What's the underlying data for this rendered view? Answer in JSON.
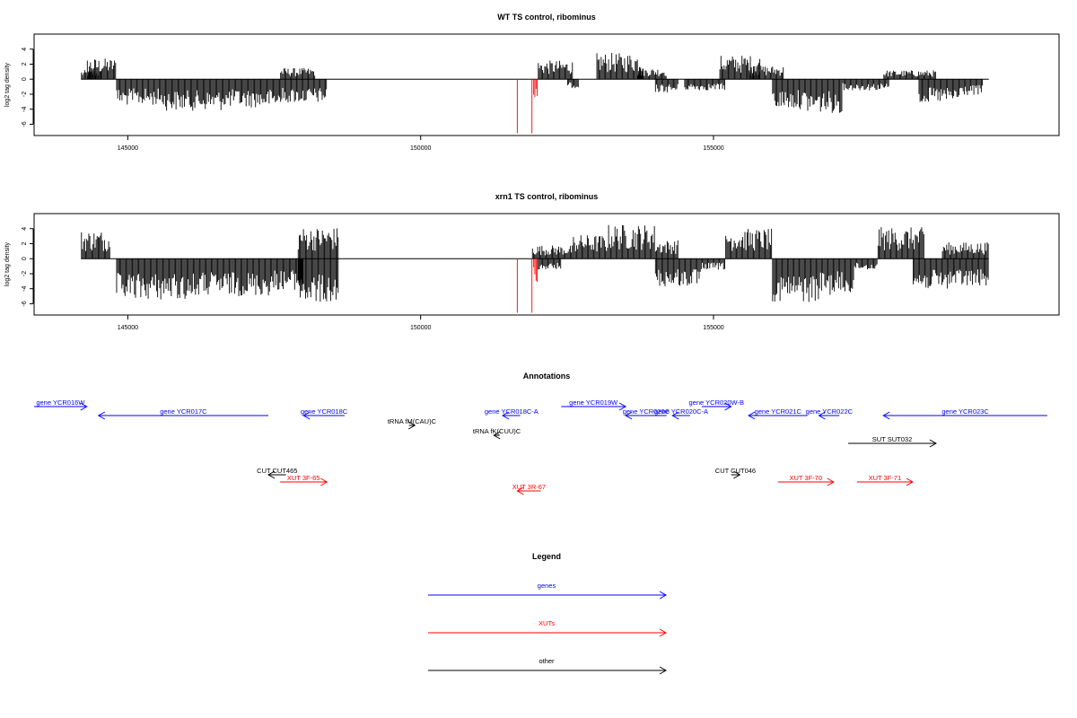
{
  "chart_data": [
    {
      "type": "bar",
      "title": "WT TS control, ribominus",
      "ylabel": "log2 tag density",
      "xlim": [
        143400,
        160900
      ],
      "ylim": [
        -7.5,
        6
      ],
      "x_ticks": [
        145000,
        150000,
        155000
      ],
      "y_ticks": [
        -6,
        -4,
        -2,
        0,
        2,
        4
      ],
      "grid": false,
      "series": [
        {
          "color": "#000000",
          "segments": [
            [
              144200,
              144550,
              0,
              1.2
            ],
            [
              144300,
              144800,
              0,
              2.8
            ],
            [
              144800,
              145600,
              -3.5,
              0
            ],
            [
              145600,
              146600,
              -4.2,
              0
            ],
            [
              146600,
              147600,
              -3.8,
              0
            ],
            [
              147600,
              148200,
              0,
              1.5
            ],
            [
              147600,
              148400,
              -3.2,
              0
            ],
            [
              152000,
              152600,
              0,
              2.5
            ],
            [
              152500,
              152700,
              -1.2,
              0
            ],
            [
              153000,
              153800,
              0,
              3.5
            ],
            [
              153700,
              154200,
              0,
              1.5
            ],
            [
              154000,
              154400,
              -1.8,
              0
            ],
            [
              154500,
              155200,
              -1.5,
              0
            ],
            [
              155100,
              155800,
              0,
              3.2
            ],
            [
              155600,
              156200,
              0,
              1.8
            ],
            [
              156000,
              156600,
              -4.0,
              0
            ],
            [
              156600,
              157200,
              -4.5,
              0
            ],
            [
              157200,
              158000,
              -1.5,
              0
            ],
            [
              157900,
              158800,
              0,
              1.2
            ],
            [
              158500,
              159200,
              -3.2,
              0
            ],
            [
              159200,
              159600,
              -2.2,
              0
            ]
          ]
        },
        {
          "color": "#ff0000",
          "segments": [
            [
              151650,
              151660,
              -7.2,
              0
            ],
            [
              151900,
              151910,
              -7.2,
              0
            ],
            [
              151920,
              152000,
              -2.8,
              0
            ]
          ]
        }
      ]
    },
    {
      "type": "bar",
      "title": "xrn1 TS control, ribominus",
      "ylabel": "log2 tag density",
      "xlim": [
        143400,
        160900
      ],
      "ylim": [
        -7.5,
        6
      ],
      "x_ticks": [
        145000,
        150000,
        155000
      ],
      "y_ticks": [
        -6,
        -4,
        -2,
        0,
        2,
        4
      ],
      "grid": false,
      "series": [
        {
          "color": "#000000",
          "segments": [
            [
              144200,
              144700,
              0,
              3.8
            ],
            [
              144800,
              146200,
              -5.5,
              0
            ],
            [
              146200,
              147500,
              -5.0,
              0
            ],
            [
              147500,
              148000,
              -4.2,
              0
            ],
            [
              147900,
              148600,
              0,
              4.2
            ],
            [
              147900,
              148600,
              -6.0,
              0
            ],
            [
              151900,
              152600,
              0,
              1.8
            ],
            [
              152000,
              152400,
              -1.5,
              0
            ],
            [
              152600,
              153200,
              0,
              3.2
            ],
            [
              153200,
              154000,
              0,
              4.6
            ],
            [
              154000,
              154400,
              0,
              2.5
            ],
            [
              154000,
              154800,
              -3.8,
              0
            ],
            [
              154800,
              155200,
              -1.5,
              0
            ],
            [
              155200,
              156000,
              0,
              4.0
            ],
            [
              156000,
              156800,
              -5.8,
              0
            ],
            [
              156800,
              157400,
              -4.8,
              0
            ],
            [
              157400,
              157800,
              -1.5,
              0
            ],
            [
              157800,
              158600,
              0,
              4.2
            ],
            [
              158400,
              159000,
              -4.2,
              0
            ],
            [
              158900,
              159700,
              0,
              2.2
            ],
            [
              159000,
              159700,
              -3.8,
              0
            ]
          ]
        },
        {
          "color": "#ff0000",
          "segments": [
            [
              151650,
              151660,
              -7.2,
              0
            ],
            [
              151900,
              151910,
              -7.2,
              0
            ],
            [
              151920,
              152000,
              -3.2,
              0
            ]
          ]
        }
      ]
    },
    {
      "type": "other",
      "title": "Annotations",
      "xlim": [
        143400,
        160900
      ],
      "tracks": [
        {
          "label": "gene YCR016W",
          "start": 143400,
          "end": 144300,
          "strand": "+",
          "color": "#0000ff",
          "row": 0
        },
        {
          "label": "gene YCR017C",
          "start": 144500,
          "end": 147400,
          "strand": "-",
          "color": "#0000ff",
          "row": 1
        },
        {
          "label": "gene YCR018C",
          "start": 148000,
          "end": 148700,
          "strand": "-",
          "color": "#0000ff",
          "row": 1
        },
        {
          "label": "tRNA fM(CAU)C",
          "start": 149800,
          "end": 149900,
          "strand": "+",
          "color": "#000000",
          "row": 2
        },
        {
          "label": "tRNA fK(CUU)C",
          "start": 151250,
          "end": 151350,
          "strand": "-",
          "color": "#000000",
          "row": 3
        },
        {
          "label": "gene YCR018C-A",
          "start": 151400,
          "end": 151700,
          "strand": "-",
          "color": "#0000ff",
          "row": 1
        },
        {
          "label": "gene YCR019W",
          "start": 152400,
          "end": 153500,
          "strand": "+",
          "color": "#0000ff",
          "row": 0
        },
        {
          "label": "gene YCR020C",
          "start": 153500,
          "end": 154200,
          "strand": "-",
          "color": "#0000ff",
          "row": 1
        },
        {
          "label": "gene YCR020C-A",
          "start": 154300,
          "end": 154600,
          "strand": "-",
          "color": "#0000ff",
          "row": 1
        },
        {
          "label": "gene YCR020W-B",
          "start": 154800,
          "end": 155300,
          "strand": "+",
          "color": "#0000ff",
          "row": 0
        },
        {
          "label": "gene YCR021C",
          "start": 155600,
          "end": 156600,
          "strand": "-",
          "color": "#0000ff",
          "row": 1
        },
        {
          "label": "gene YCR022C",
          "start": 156800,
          "end": 157150,
          "strand": "-",
          "color": "#0000ff",
          "row": 1
        },
        {
          "label": "gene YCR023C",
          "start": 157900,
          "end": 160700,
          "strand": "-",
          "color": "#0000ff",
          "row": 1
        },
        {
          "label": "SUT SUT032",
          "start": 157300,
          "end": 158800,
          "strand": "+",
          "color": "#000000",
          "row": 4
        },
        {
          "label": "CUT CUT465",
          "start": 147400,
          "end": 147700,
          "strand": "-",
          "color": "#000000",
          "row": 5
        },
        {
          "label": "XUT 3F-65",
          "start": 147600,
          "end": 148400,
          "strand": "+",
          "color": "#ff0000",
          "row": 6
        },
        {
          "label": "XUT 3R-67",
          "start": 151650,
          "end": 152050,
          "strand": "-",
          "color": "#ff0000",
          "row": 7
        },
        {
          "label": "CUT CUT046",
          "start": 155300,
          "end": 155450,
          "strand": "+",
          "color": "#000000",
          "row": 5
        },
        {
          "label": "XUT 3F-70",
          "start": 156100,
          "end": 157050,
          "strand": "+",
          "color": "#ff0000",
          "row": 6
        },
        {
          "label": "XUT 3F-71",
          "start": 157450,
          "end": 158400,
          "strand": "+",
          "color": "#ff0000",
          "row": 6
        }
      ]
    },
    {
      "type": "other",
      "title": "Legend",
      "entries": [
        {
          "label": "genes",
          "color": "#0000ff"
        },
        {
          "label": "XUTs",
          "color": "#ff0000"
        },
        {
          "label": "other",
          "color": "#000000"
        }
      ]
    }
  ]
}
